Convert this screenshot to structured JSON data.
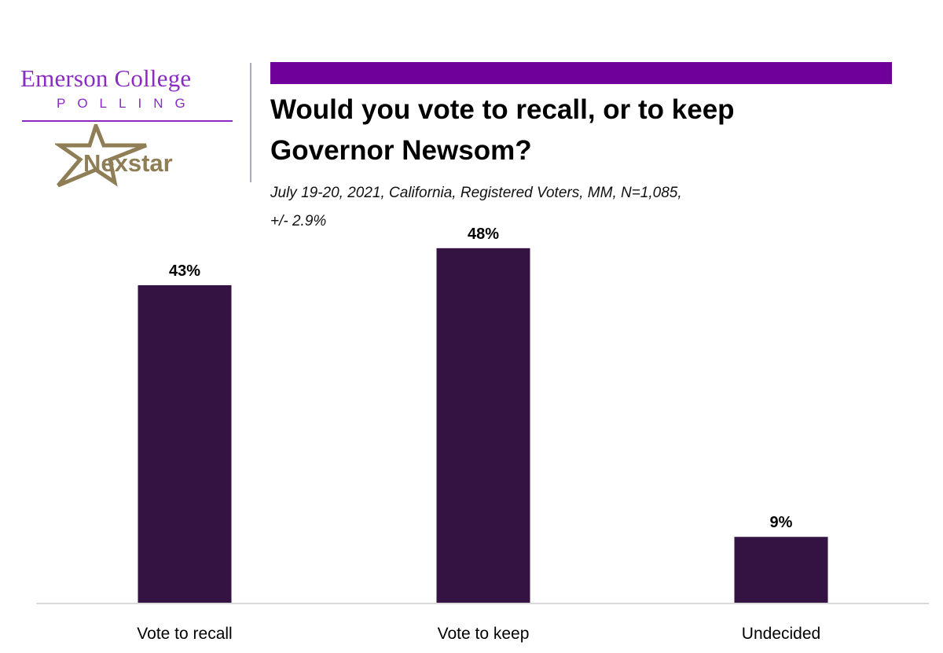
{
  "branding": {
    "emerson": "Emerson College",
    "polling": "POLLING",
    "nexstar": "Nexstar",
    "colors": {
      "emerson": "#8a2bc4",
      "nexstar": "#8f7e55",
      "accent_bar": "#6f0099"
    }
  },
  "header": {
    "title_line1": "Would you vote to recall, or to keep",
    "title_line2": "Governor Newsom?",
    "subtitle_line1": "July 19-20, 2021, California, Registered Voters, MM,  N=1,085,",
    "subtitle_line2": "+/-  2.9%"
  },
  "chart_data": {
    "type": "bar",
    "categories": [
      "Vote to recall",
      "Vote to keep",
      "Undecided"
    ],
    "values": [
      43,
      48,
      9
    ],
    "value_labels": [
      "43%",
      "48%",
      "9%"
    ],
    "ylim": [
      0,
      50
    ],
    "grid": false,
    "bar_color": "#341242",
    "axis_color": "#d9d9d9"
  }
}
